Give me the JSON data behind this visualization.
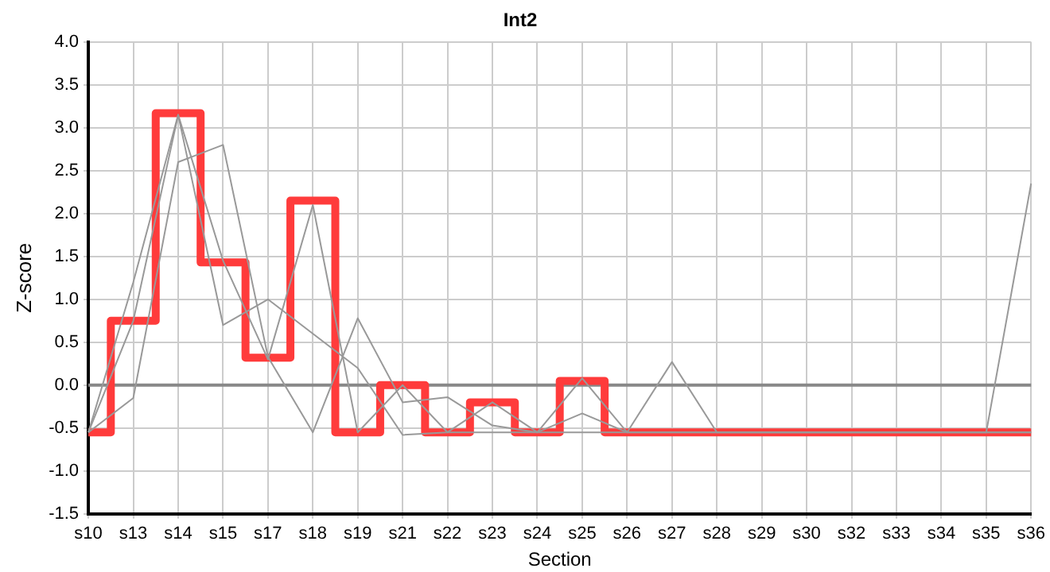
{
  "chart_data": {
    "type": "line",
    "title": "Int2",
    "xlabel": "Section",
    "ylabel": "Z-score",
    "categories": [
      "s10",
      "s13",
      "s14",
      "s15",
      "s17",
      "s18",
      "s19",
      "s21",
      "s22",
      "s23",
      "s24",
      "s25",
      "s26",
      "s27",
      "s28",
      "s29",
      "s30",
      "s32",
      "s33",
      "s34",
      "s35",
      "s36"
    ],
    "series": [
      {
        "color": "#999999",
        "values": [
          -0.55,
          0.75,
          3.15,
          1.45,
          0.3,
          2.1,
          -0.55,
          0.0,
          -0.55,
          -0.2,
          -0.55,
          0.08,
          -0.55,
          -0.55,
          -0.55,
          -0.55,
          -0.55,
          -0.55,
          -0.55,
          -0.55,
          -0.55,
          -0.55
        ]
      },
      {
        "color": "#999999",
        "values": [
          -0.55,
          -0.15,
          2.6,
          2.8,
          0.33,
          -0.55,
          0.78,
          -0.2,
          -0.14,
          -0.47,
          -0.55,
          -0.33,
          -0.55,
          0.27,
          -0.55,
          -0.55,
          -0.55,
          -0.55,
          -0.55,
          -0.55,
          -0.55,
          2.35
        ]
      },
      {
        "color": "#999999",
        "values": [
          -0.55,
          1.2,
          3.15,
          0.7,
          1.0,
          0.6,
          0.2,
          -0.58,
          -0.55,
          -0.55,
          -0.55,
          -0.55,
          -0.55,
          -0.55,
          -0.55,
          -0.55,
          -0.55,
          -0.55,
          -0.55,
          -0.55,
          -0.55,
          -0.55
        ]
      },
      {
        "type": "step",
        "color": "#ff3b3b",
        "values": [
          -0.55,
          0.75,
          3.17,
          1.43,
          0.32,
          2.15,
          -0.55,
          0.0,
          -0.55,
          -0.2,
          -0.55,
          0.05,
          -0.55,
          -0.55,
          -0.55,
          -0.55,
          -0.55,
          -0.55,
          -0.55,
          -0.55,
          -0.55,
          -0.55
        ]
      }
    ],
    "ylim": [
      -1.5,
      4.0
    ],
    "yticks": [
      {
        "value": -1.5,
        "label": "-1.5"
      },
      {
        "value": -1,
        "label": "-1.0"
      },
      {
        "value": -0.5,
        "label": "-0.5"
      },
      {
        "value": 0,
        "label": "0.0"
      },
      {
        "value": 0.5,
        "label": "0.5"
      },
      {
        "value": 1,
        "label": "1.0"
      },
      {
        "value": 1.5,
        "label": "1.5"
      },
      {
        "value": 2,
        "label": "2.0"
      },
      {
        "value": 2.5,
        "label": "2.5"
      },
      {
        "value": 3,
        "label": "3.0"
      },
      {
        "value": 3.5,
        "label": "3.5"
      },
      {
        "value": 4,
        "label": "4.0"
      }
    ],
    "ref_lines": [
      {
        "axis": "y",
        "value": 0,
        "color": "#888888"
      }
    ],
    "grid": true,
    "legend": false,
    "marker": "none"
  }
}
